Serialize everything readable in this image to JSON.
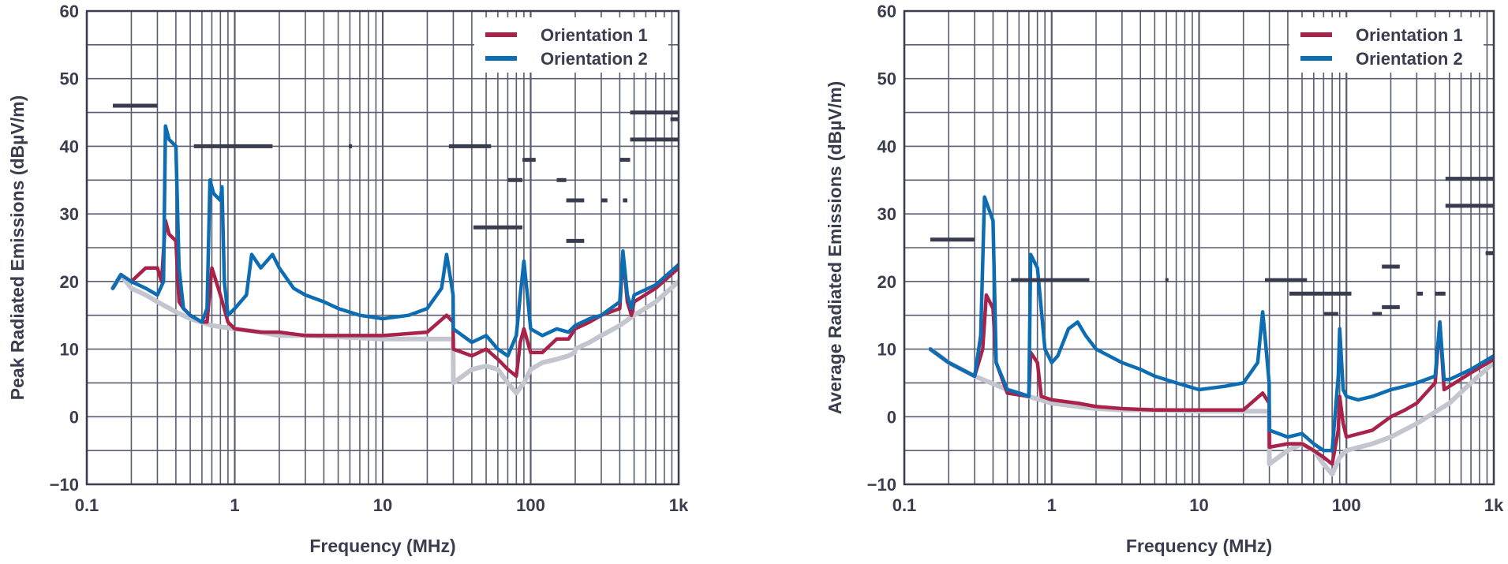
{
  "colors": {
    "orientation1": "#a8224a",
    "orientation2": "#0d6db3",
    "ambient": "#c4c6cf",
    "limit": "#393c4f",
    "grid": "#5a5d70",
    "frame": "#3a3d4e"
  },
  "chart_data": [
    {
      "type": "line",
      "title": "",
      "xlabel": "Frequency (MHz)",
      "ylabel": "Peak Radiated Emissions (dBµV/m)",
      "xscale": "log",
      "xlim": [
        0.1,
        1000
      ],
      "ylim": [
        -10,
        60
      ],
      "xticks": [
        0.1,
        1,
        10,
        100,
        1000
      ],
      "xtick_labels": [
        "0.1",
        "1",
        "10",
        "100",
        "1k"
      ],
      "yticks": [
        -10,
        0,
        10,
        20,
        30,
        40,
        50,
        60
      ],
      "ytick_labels": [
        "−10",
        "0",
        "10",
        "20",
        "30",
        "40",
        "50",
        "60"
      ],
      "grid": true,
      "legend_position": "top-right",
      "legend": [
        "Orientation 1",
        "Orientation 2"
      ],
      "series": [
        {
          "name": "",
          "role": "ambient",
          "x": [
            0.15,
            0.17,
            0.2,
            0.25,
            0.3,
            0.4,
            0.5,
            0.7,
            1.0,
            1.5,
            2,
            3,
            5,
            10,
            20,
            29.9,
            30,
            40,
            50,
            60,
            70,
            80,
            90,
            100,
            120,
            150,
            180,
            199,
            200,
            250,
            300,
            400,
            500,
            700,
            1000
          ],
          "y": [
            19,
            21,
            19,
            18,
            17,
            15.5,
            14.5,
            13.5,
            13,
            12.5,
            12,
            12,
            11.8,
            11.5,
            11.5,
            11.5,
            5,
            7,
            7.5,
            7,
            5,
            3.5,
            5,
            7,
            8,
            8.5,
            9,
            9.5,
            10,
            11,
            12,
            13.5,
            15,
            17,
            20
          ]
        },
        {
          "name": "Orientation 1",
          "role": "orientation1",
          "x": [
            0.15,
            0.17,
            0.2,
            0.25,
            0.3,
            0.32,
            0.34,
            0.36,
            0.4,
            0.42,
            0.45,
            0.5,
            0.6,
            0.65,
            0.7,
            0.8,
            0.9,
            1.0,
            1.5,
            2,
            3,
            5,
            10,
            20,
            27,
            29.9,
            30,
            40,
            50,
            60,
            70,
            80,
            85,
            90,
            100,
            120,
            150,
            180,
            200,
            250,
            300,
            400,
            420,
            450,
            480,
            500,
            700,
            1000
          ],
          "y": [
            19,
            21,
            20,
            22,
            22,
            20,
            29,
            27,
            26,
            17,
            16,
            15,
            14,
            14,
            22,
            18,
            14,
            13,
            12.5,
            12.5,
            12,
            12,
            12,
            12.5,
            15,
            14,
            10,
            9,
            10,
            8.5,
            7,
            6,
            11,
            13,
            9.5,
            9.5,
            11.5,
            11.5,
            13,
            14,
            15,
            16,
            24,
            17,
            15,
            17,
            19,
            22
          ]
        },
        {
          "name": "Orientation 2",
          "role": "orientation2",
          "x": [
            0.15,
            0.17,
            0.2,
            0.25,
            0.3,
            0.33,
            0.34,
            0.36,
            0.4,
            0.42,
            0.45,
            0.5,
            0.6,
            0.65,
            0.68,
            0.72,
            0.8,
            0.82,
            0.85,
            0.9,
            1.0,
            1.2,
            1.3,
            1.5,
            1.8,
            2,
            2.5,
            3,
            4,
            5,
            7,
            10,
            15,
            20,
            25,
            27,
            28,
            29.9,
            30,
            40,
            50,
            60,
            70,
            80,
            85,
            90,
            95,
            100,
            120,
            150,
            180,
            200,
            250,
            300,
            400,
            420,
            450,
            480,
            500,
            700,
            1000
          ],
          "y": [
            19,
            21,
            20,
            19,
            18,
            20,
            43,
            41,
            40,
            22,
            16,
            15,
            14,
            16,
            35,
            33,
            32,
            34,
            20,
            15,
            16,
            18,
            24,
            22,
            24,
            22,
            19,
            18,
            17,
            16,
            15,
            14.5,
            15,
            16,
            19,
            24,
            22,
            18,
            13,
            11,
            12,
            10,
            9,
            12,
            18,
            23,
            18,
            13,
            12,
            13,
            12.5,
            13.5,
            14.5,
            15,
            17,
            24.5,
            18,
            16,
            18,
            19.5,
            22.5
          ]
        },
        {
          "name": "",
          "role": "limit",
          "segments": [
            [
              [
                0.15,
                46
              ],
              [
                0.3,
                46
              ]
            ],
            [
              [
                0.53,
                40
              ],
              [
                1.8,
                40
              ]
            ],
            [
              [
                5.9,
                40
              ],
              [
                6.2,
                40
              ]
            ],
            [
              [
                28,
                40
              ],
              [
                30,
                40
              ]
            ],
            [
              [
                30,
                40
              ],
              [
                54,
                40
              ]
            ],
            [
              [
                41,
                28
              ],
              [
                88,
                28
              ]
            ],
            [
              [
                70,
                35
              ],
              [
                88,
                35
              ]
            ],
            [
              [
                88,
                38
              ],
              [
                108,
                38
              ]
            ],
            [
              [
                150,
                35
              ],
              [
                174,
                35
              ]
            ],
            [
              [
                174,
                32
              ],
              [
                230,
                32
              ]
            ],
            [
              [
                174,
                26
              ],
              [
                230,
                26
              ]
            ],
            [
              [
                300,
                32
              ],
              [
                330,
                32
              ]
            ],
            [
              [
                420,
                32
              ],
              [
                450,
                32
              ]
            ],
            [
              [
                400,
                38
              ],
              [
                470,
                38
              ]
            ],
            [
              [
                470,
                45
              ],
              [
                1000,
                45
              ]
            ],
            [
              [
                470,
                41
              ],
              [
                1000,
                41
              ]
            ],
            [
              [
                880,
                44
              ],
              [
                1000,
                44
              ]
            ]
          ]
        }
      ]
    },
    {
      "type": "line",
      "title": "",
      "xlabel": "Frequency (MHz)",
      "ylabel": "Average Radiated Emissions (dBµV/m)",
      "xscale": "log",
      "xlim": [
        0.1,
        1000
      ],
      "ylim": [
        -10,
        60
      ],
      "xticks": [
        0.1,
        1,
        10,
        100,
        1000
      ],
      "xtick_labels": [
        "0.1",
        "1",
        "10",
        "100",
        "1k"
      ],
      "yticks": [
        -10,
        0,
        10,
        20,
        30,
        40,
        50,
        60
      ],
      "ytick_labels": [
        "−10",
        "0",
        "10",
        "20",
        "30",
        "40",
        "50",
        "60"
      ],
      "grid": true,
      "legend_position": "top-right",
      "legend": [
        "Orientation 1",
        "Orientation 2"
      ],
      "series": [
        {
          "name": "",
          "role": "ambient",
          "x": [
            0.15,
            0.2,
            0.3,
            0.5,
            0.7,
            1.0,
            1.5,
            2,
            3,
            5,
            10,
            20,
            29.9,
            30,
            40,
            50,
            60,
            70,
            80,
            90,
            100,
            150,
            200,
            300,
            500,
            700,
            1000
          ],
          "y": [
            10,
            8,
            6,
            4,
            3,
            2,
            1.5,
            1.2,
            1,
            1,
            0.8,
            0.8,
            0.8,
            -7,
            -5,
            -4,
            -5,
            -7,
            -8.5,
            -6,
            -5,
            -4,
            -3,
            -1,
            2,
            5,
            8
          ]
        },
        {
          "name": "Orientation 1",
          "role": "orientation1",
          "x": [
            0.15,
            0.2,
            0.3,
            0.34,
            0.36,
            0.4,
            0.42,
            0.5,
            0.7,
            0.72,
            0.8,
            0.85,
            1.0,
            1.5,
            2,
            3,
            5,
            10,
            20,
            27,
            29.9,
            30,
            40,
            50,
            60,
            70,
            80,
            88,
            90,
            95,
            100,
            150,
            200,
            250,
            300,
            400,
            430,
            460,
            500,
            700,
            1000
          ],
          "y": [
            10,
            8,
            6,
            10,
            18,
            16,
            8,
            3.5,
            3,
            9.5,
            8,
            3,
            2.5,
            2,
            1.5,
            1.2,
            1,
            1,
            1,
            3.5,
            2,
            -4.5,
            -4,
            -4,
            -5,
            -6,
            -7,
            -2,
            3,
            -1,
            -3,
            -2,
            0,
            1,
            2,
            5,
            14,
            4,
            4.5,
            6.5,
            8.5
          ]
        },
        {
          "name": "Orientation 2",
          "role": "orientation2",
          "x": [
            0.15,
            0.2,
            0.3,
            0.33,
            0.35,
            0.4,
            0.42,
            0.5,
            0.6,
            0.7,
            0.72,
            0.8,
            0.9,
            1.0,
            1.1,
            1.3,
            1.5,
            1.7,
            2,
            3,
            4,
            5,
            7,
            10,
            15,
            20,
            25,
            27,
            28,
            29.9,
            30,
            40,
            50,
            60,
            70,
            80,
            88,
            90,
            95,
            100,
            120,
            150,
            200,
            250,
            300,
            400,
            430,
            460,
            500,
            700,
            1000
          ],
          "y": [
            10,
            8,
            6,
            12,
            32.5,
            29,
            8,
            4,
            3.5,
            3,
            24,
            22,
            10,
            8,
            9,
            13,
            14,
            12,
            10,
            8,
            7,
            6,
            5,
            4,
            4.5,
            5,
            8,
            15.5,
            12,
            5,
            -2,
            -3,
            -2.5,
            -4,
            -5,
            -5,
            6,
            13,
            4,
            3,
            2.5,
            3,
            4,
            4.5,
            5,
            6,
            14,
            5.5,
            5.5,
            7,
            9
          ]
        },
        {
          "name": "",
          "role": "limit",
          "segments": [
            [
              [
                0.15,
                26.2
              ],
              [
                0.3,
                26.2
              ]
            ],
            [
              [
                0.53,
                20.2
              ],
              [
                1.8,
                20.2
              ]
            ],
            [
              [
                5.9,
                20.2
              ],
              [
                6.2,
                20.2
              ]
            ],
            [
              [
                28,
                20.2
              ],
              [
                30,
                20.2
              ]
            ],
            [
              [
                30,
                20.2
              ],
              [
                54,
                20.2
              ]
            ],
            [
              [
                41,
                18.2
              ],
              [
                108,
                18.2
              ]
            ],
            [
              [
                70,
                15.2
              ],
              [
                88,
                15.2
              ]
            ],
            [
              [
                150,
                15.2
              ],
              [
                174,
                15.2
              ]
            ],
            [
              [
                174,
                16.2
              ],
              [
                230,
                16.2
              ]
            ],
            [
              [
                174,
                22.2
              ],
              [
                230,
                22.2
              ]
            ],
            [
              [
                300,
                18.2
              ],
              [
                330,
                18.2
              ]
            ],
            [
              [
                400,
                18.2
              ],
              [
                470,
                18.2
              ]
            ],
            [
              [
                470,
                35.2
              ],
              [
                1000,
                35.2
              ]
            ],
            [
              [
                470,
                31.2
              ],
              [
                1000,
                31.2
              ]
            ],
            [
              [
                880,
                24.2
              ],
              [
                1000,
                24.2
              ]
            ]
          ]
        }
      ]
    }
  ]
}
